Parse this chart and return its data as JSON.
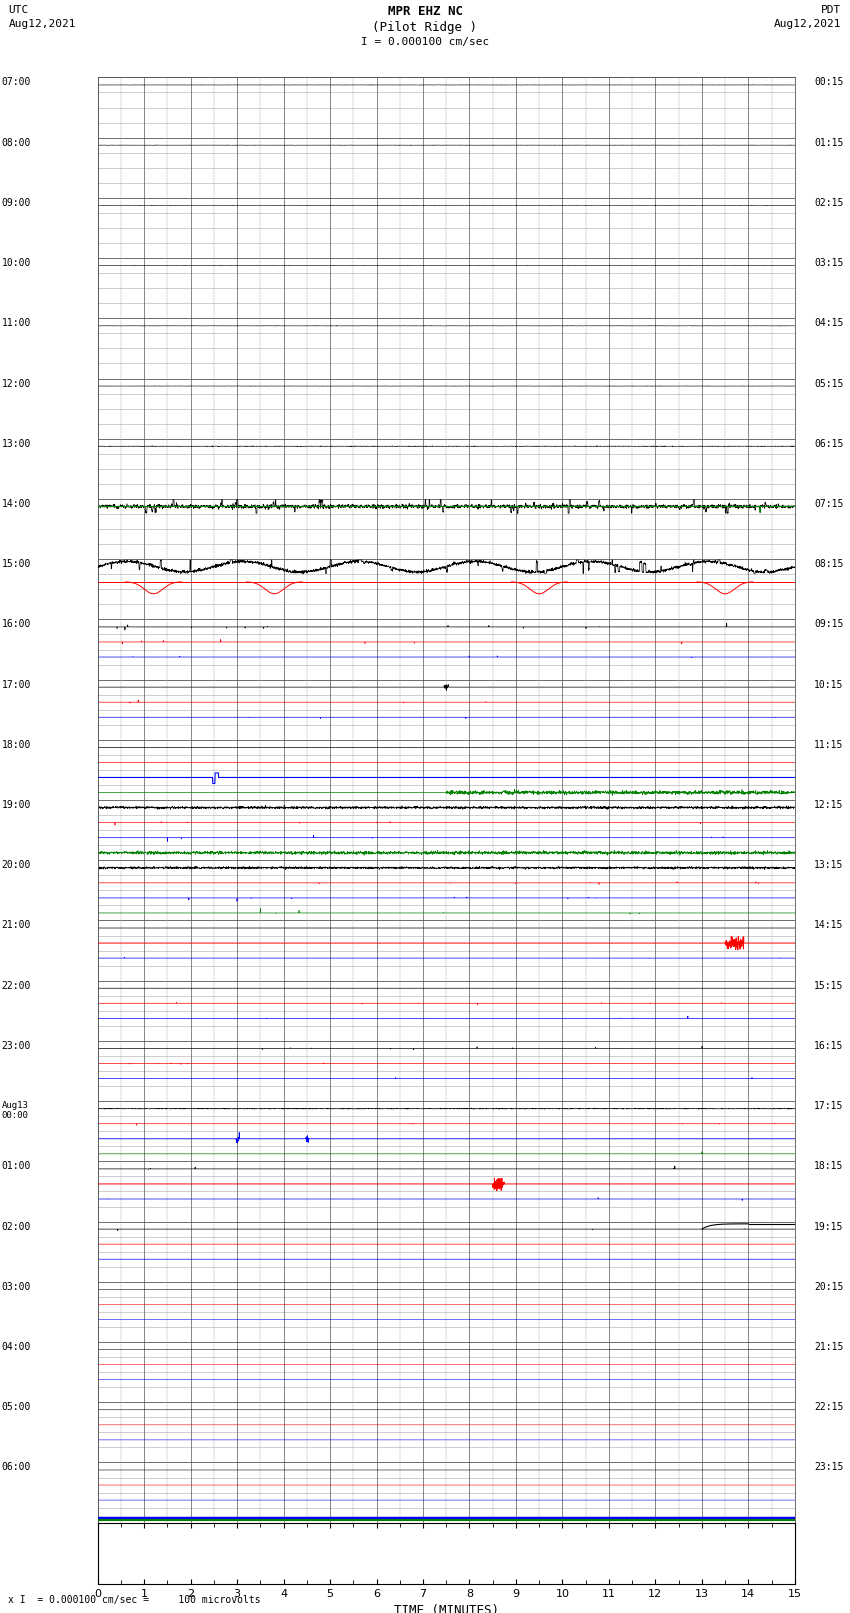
{
  "title_line1": "MPR EHZ NC",
  "title_line2": "(Pilot Ridge )",
  "title_scale": "I = 0.000100 cm/sec",
  "left_header_line1": "UTC",
  "left_header_line2": "Aug12,2021",
  "right_header_line1": "PDT",
  "right_header_line2": "Aug12,2021",
  "xlabel": "TIME (MINUTES)",
  "bottom_note": "x I  = 0.000100 cm/sec =     100 microvolts",
  "utc_labels": [
    "07:00",
    "08:00",
    "09:00",
    "10:00",
    "11:00",
    "12:00",
    "13:00",
    "14:00",
    "15:00",
    "16:00",
    "17:00",
    "18:00",
    "19:00",
    "20:00",
    "21:00",
    "22:00",
    "23:00",
    "Aug13\n00:00",
    "01:00",
    "02:00",
    "03:00",
    "04:00",
    "05:00",
    "06:00"
  ],
  "pdt_labels": [
    "00:15",
    "01:15",
    "02:15",
    "03:15",
    "04:15",
    "05:15",
    "06:15",
    "07:15",
    "08:15",
    "09:15",
    "10:15",
    "11:15",
    "12:15",
    "13:15",
    "14:15",
    "15:15",
    "16:15",
    "17:15",
    "18:15",
    "19:15",
    "20:15",
    "21:15",
    "22:15",
    "23:15"
  ],
  "num_hours": 24,
  "subrows_per_hour": 4,
  "minutes_per_row": 15,
  "bg_color": "#ffffff",
  "grid_color": "#aaaaaa",
  "major_grid_color": "#555555"
}
